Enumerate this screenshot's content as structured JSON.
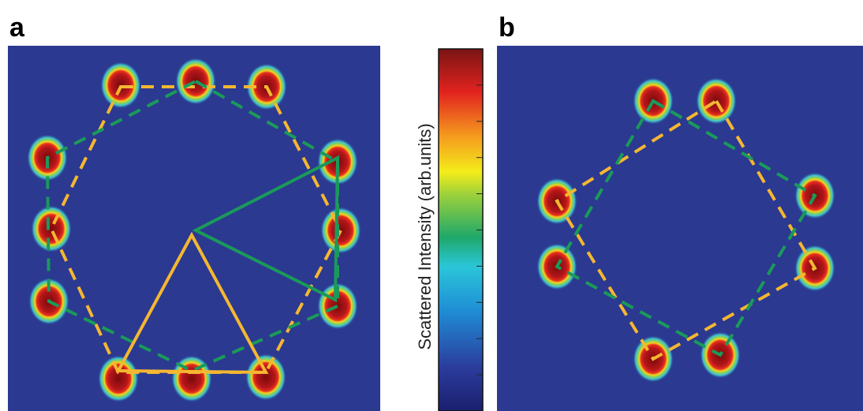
{
  "panels": [
    {
      "label": "a"
    },
    {
      "label": "b"
    }
  ],
  "colorbar": {
    "label": "Scattered Intensity (arb.units)"
  }
}
